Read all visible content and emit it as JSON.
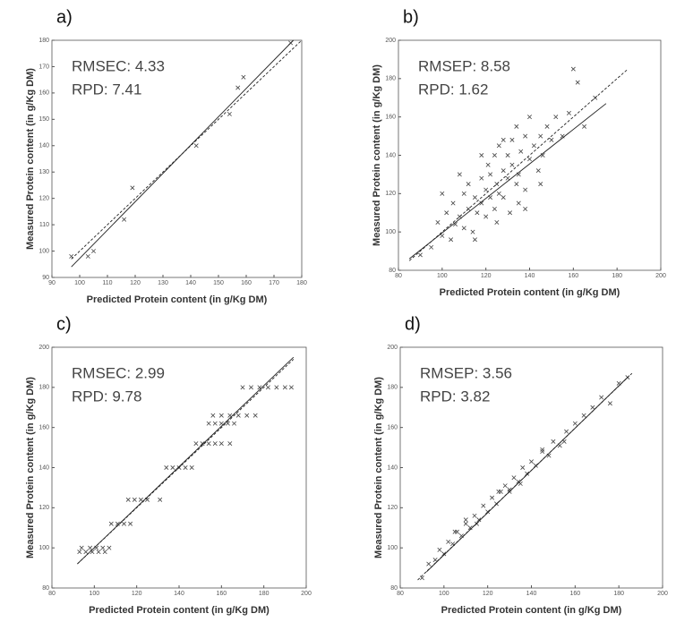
{
  "chart_data": [
    {
      "type": "scatter",
      "label": "a)",
      "annotations": [
        "RMSEC: 4.33",
        "RPD: 7.41"
      ],
      "x_label": "Predicted Protein content (in g/Kg DM)",
      "y_label": "Measured Protein content (in g/Kg DM)",
      "xlim": [
        90,
        180
      ],
      "ylim": [
        90,
        180
      ],
      "xticks": [
        90,
        100,
        110,
        120,
        130,
        140,
        150,
        160,
        170,
        180
      ],
      "yticks": [
        90,
        100,
        110,
        120,
        130,
        140,
        150,
        160,
        170,
        180
      ],
      "color": "#444444",
      "x": [
        97,
        103,
        105,
        116,
        119,
        142,
        154,
        157,
        159,
        176
      ],
      "y": [
        98,
        98,
        100,
        112,
        124,
        140,
        152,
        162,
        166,
        179
      ],
      "fit_line": {
        "x": [
          97,
          177
        ],
        "y": [
          94,
          180
        ]
      },
      "reference_line": {
        "x": [
          97,
          180
        ],
        "y": [
          97,
          180
        ]
      }
    },
    {
      "type": "scatter",
      "label": "b)",
      "annotations": [
        "RMSEP: 8.58",
        "RPD: 1.62"
      ],
      "x_label": "Predicted Protein content (in g/Kg DM)",
      "y_label": "Measured Protein content (in g/Kg DM)",
      "xlim": [
        80,
        200
      ],
      "ylim": [
        80,
        200
      ],
      "xticks": [
        80,
        100,
        120,
        140,
        160,
        180,
        200
      ],
      "yticks": [
        80,
        100,
        120,
        140,
        160,
        180,
        200
      ],
      "color": "#444444",
      "x": [
        90,
        95,
        98,
        100,
        102,
        104,
        105,
        106,
        108,
        110,
        110,
        112,
        112,
        114,
        115,
        116,
        118,
        118,
        120,
        120,
        121,
        122,
        122,
        124,
        124,
        125,
        126,
        126,
        128,
        128,
        130,
        130,
        131,
        132,
        132,
        134,
        134,
        135,
        136,
        138,
        138,
        140,
        140,
        142,
        144,
        145,
        146,
        148,
        150,
        152,
        155,
        158,
        160,
        162,
        165,
        170,
        100,
        115,
        125,
        135,
        145,
        108,
        118,
        128,
        138
      ],
      "y": [
        88,
        92,
        105,
        98,
        110,
        96,
        115,
        104,
        108,
        120,
        102,
        112,
        125,
        100,
        118,
        110,
        128,
        115,
        122,
        108,
        135,
        118,
        130,
        112,
        140,
        125,
        120,
        145,
        118,
        132,
        128,
        140,
        110,
        135,
        148,
        125,
        155,
        130,
        142,
        122,
        150,
        138,
        160,
        145,
        132,
        150,
        140,
        155,
        148,
        160,
        150,
        162,
        185,
        178,
        155,
        170,
        120,
        96,
        105,
        115,
        125,
        130,
        140,
        148,
        112
      ],
      "fit_line": {
        "x": [
          85,
          175
        ],
        "y": [
          86,
          167
        ]
      },
      "reference_line": {
        "x": [
          85,
          185
        ],
        "y": [
          85,
          185
        ]
      }
    },
    {
      "type": "scatter",
      "label": "c)",
      "annotations": [
        "RMSEC: 2.99",
        "RPD: 9.78"
      ],
      "x_label": "Predicted Protein content (in g/Kg DM)",
      "y_label": "Measured Protein content (in g/Kg DM)",
      "xlim": [
        80,
        200
      ],
      "ylim": [
        80,
        200
      ],
      "xticks": [
        80,
        100,
        120,
        140,
        160,
        180,
        200
      ],
      "yticks": [
        80,
        100,
        120,
        140,
        160,
        180,
        200
      ],
      "color": "#444444",
      "x": [
        93,
        96,
        99,
        102,
        105,
        94,
        98,
        101,
        104,
        107,
        108,
        111,
        114,
        117,
        116,
        119,
        122,
        125,
        131,
        134,
        137,
        140,
        143,
        146,
        148,
        151,
        154,
        157,
        160,
        164,
        154,
        157,
        160,
        163,
        166,
        156,
        160,
        164,
        168,
        172,
        176,
        170,
        174,
        178,
        182,
        186,
        190,
        193
      ],
      "y": [
        98,
        98,
        98,
        98,
        98,
        100,
        100,
        100,
        100,
        100,
        112,
        112,
        112,
        112,
        124,
        124,
        124,
        124,
        124,
        140,
        140,
        140,
        140,
        140,
        152,
        152,
        152,
        152,
        152,
        152,
        162,
        162,
        162,
        162,
        162,
        166,
        166,
        166,
        166,
        166,
        166,
        180,
        180,
        180,
        180,
        180,
        180,
        180
      ],
      "fit_line": {
        "x": [
          92,
          194
        ],
        "y": [
          92,
          195
        ]
      },
      "reference_line": {
        "x": [
          92,
          194
        ],
        "y": [
          92,
          194
        ]
      }
    },
    {
      "type": "scatter",
      "label": "d)",
      "annotations": [
        "RMSEP: 3.56",
        "RPD: 3.82"
      ],
      "x_label": "Predicted Protein content (in g/Kg DM)",
      "y_label": "Measured Protein content (in g/Kg DM)",
      "xlim": [
        80,
        200
      ],
      "ylim": [
        80,
        200
      ],
      "xticks": [
        80,
        100,
        120,
        140,
        160,
        180,
        200
      ],
      "yticks": [
        80,
        100,
        120,
        140,
        160,
        180,
        200
      ],
      "color": "#444444",
      "x": [
        90,
        93,
        96,
        98,
        100,
        102,
        104,
        106,
        108,
        110,
        112,
        114,
        116,
        118,
        120,
        122,
        124,
        126,
        128,
        130,
        132,
        134,
        136,
        138,
        140,
        142,
        145,
        148,
        150,
        153,
        156,
        160,
        164,
        168,
        172,
        176,
        180,
        184,
        105,
        115,
        125,
        135,
        145,
        155,
        110,
        130
      ],
      "y": [
        85,
        92,
        94,
        99,
        97,
        103,
        102,
        108,
        106,
        112,
        110,
        116,
        114,
        121,
        118,
        125,
        122,
        128,
        131,
        129,
        135,
        133,
        140,
        137,
        143,
        141,
        148,
        146,
        153,
        151,
        158,
        162,
        166,
        170,
        175,
        172,
        182,
        185,
        108,
        112,
        128,
        132,
        149,
        153,
        114,
        128
      ],
      "fit_line": {
        "x": [
          92,
          184
        ],
        "y": [
          88,
          185
        ]
      },
      "reference_line": {
        "x": [
          88,
          186
        ],
        "y": [
          84,
          187
        ]
      }
    }
  ]
}
